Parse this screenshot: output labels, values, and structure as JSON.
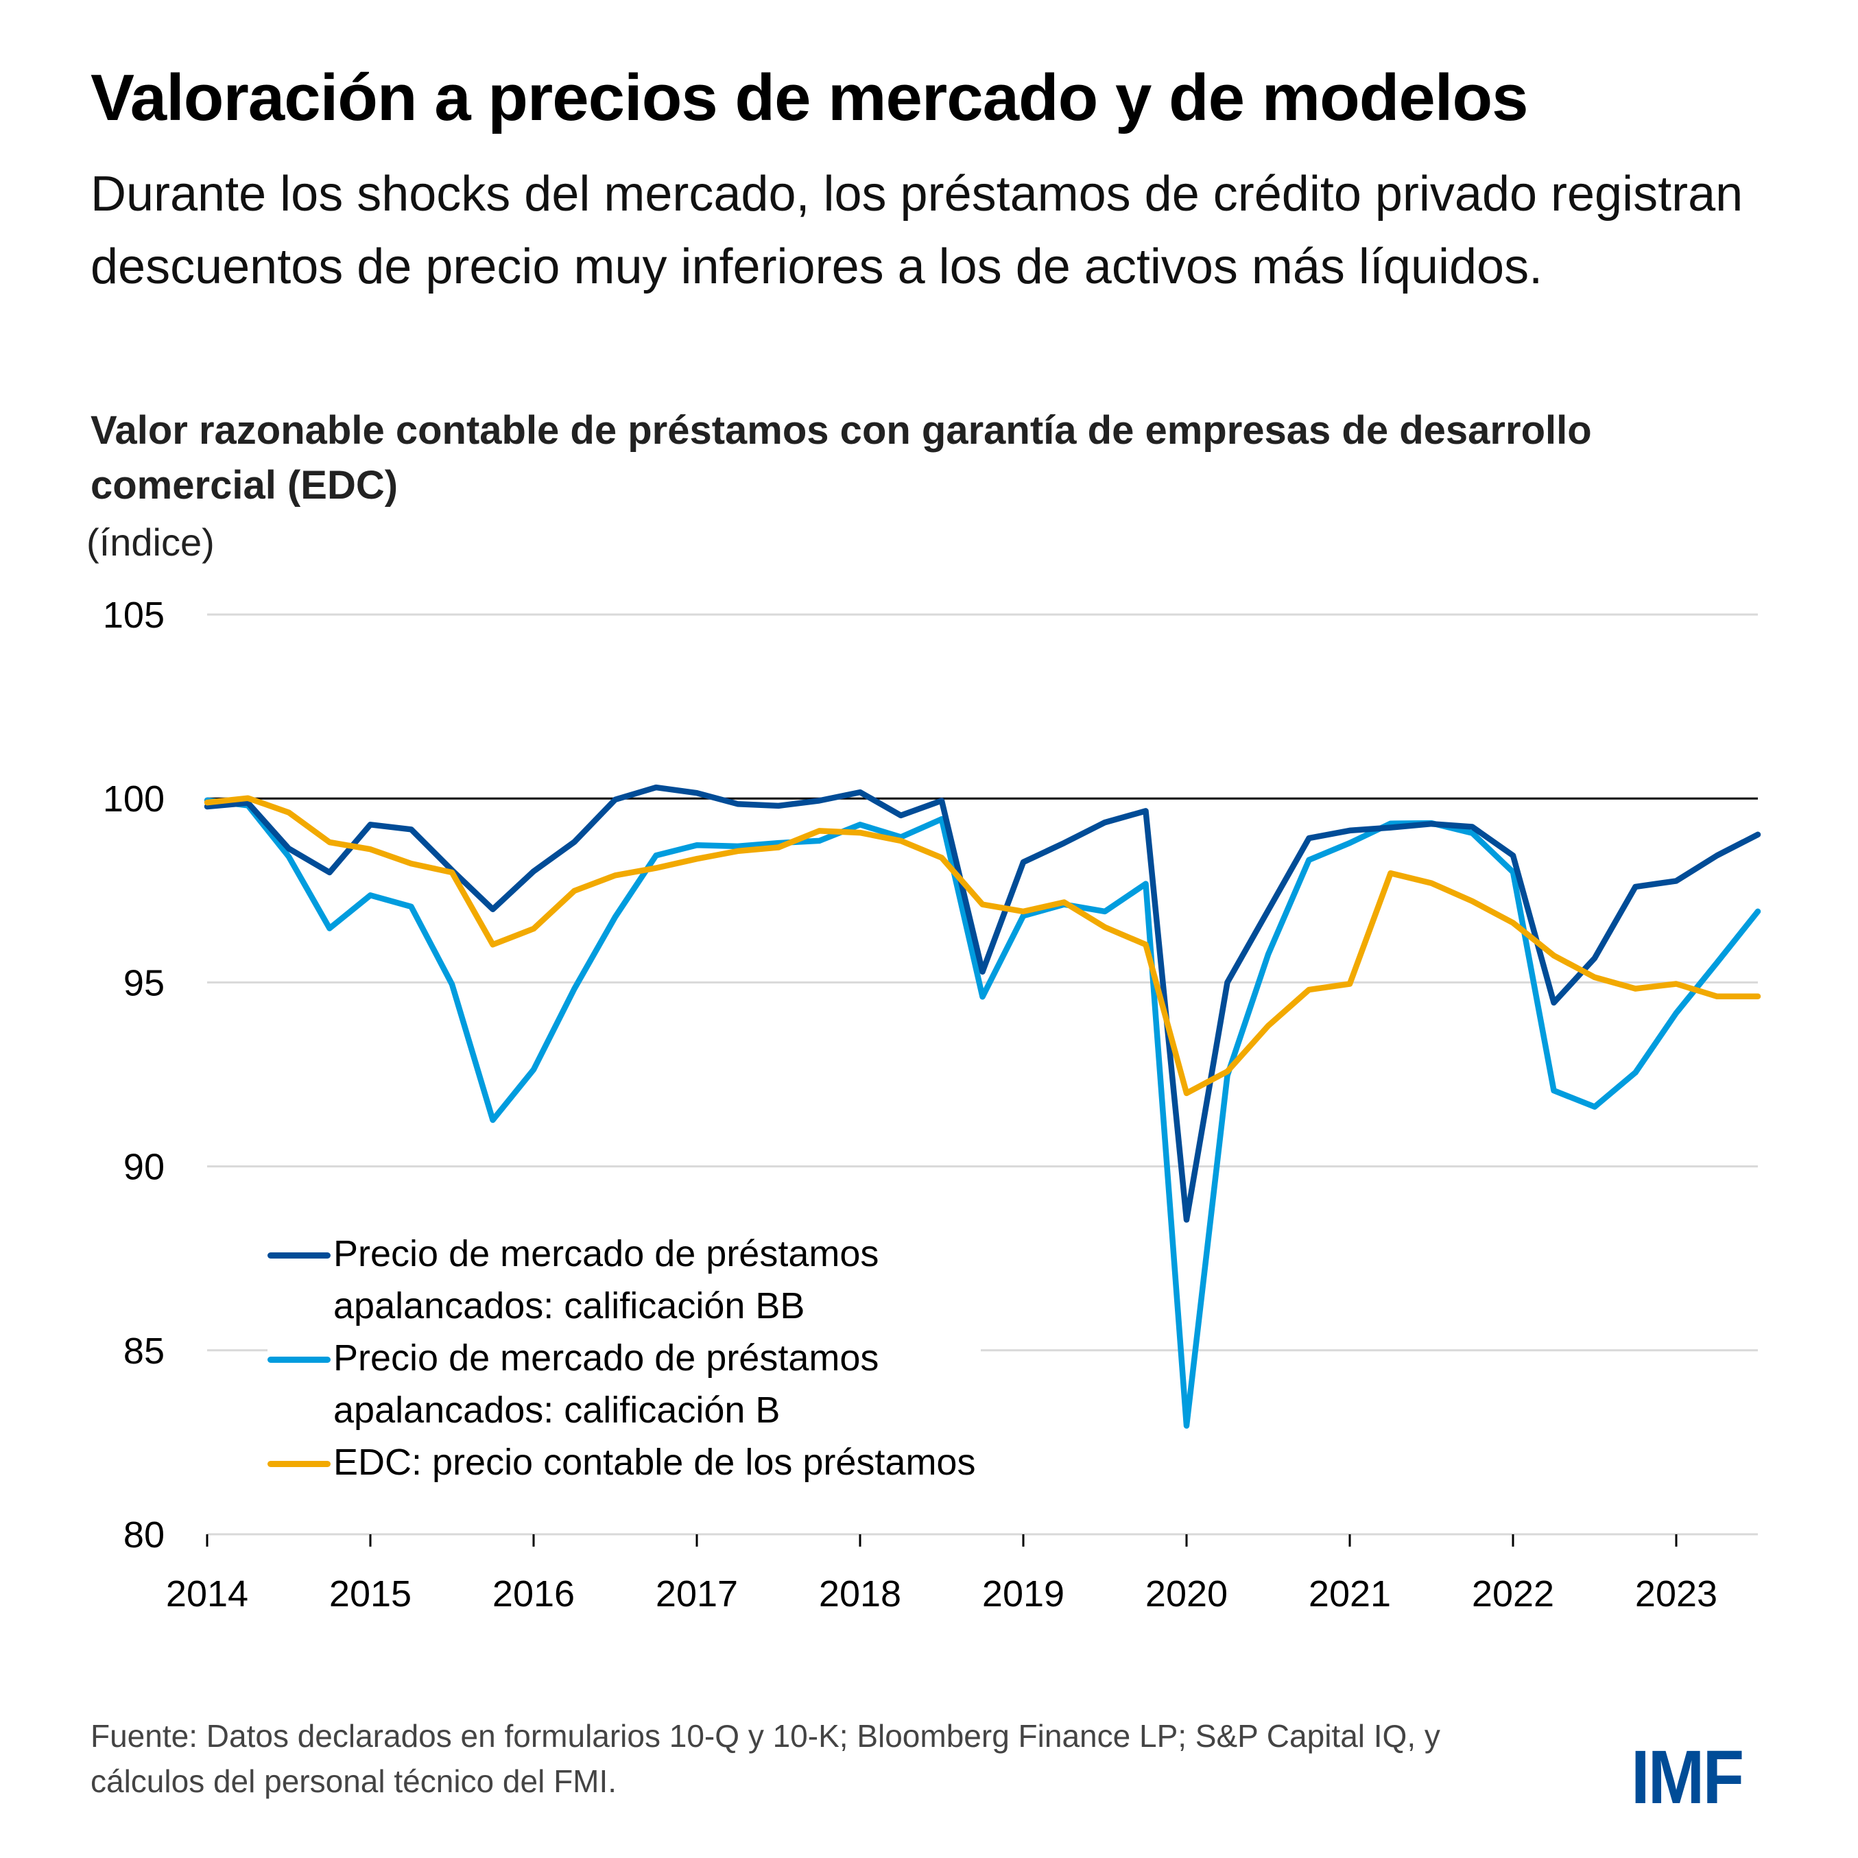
{
  "header": {
    "title": "Valoración a precios de mercado y de modelos",
    "subtitle": "Durante los shocks del mercado, los préstamos de crédito privado registran descuentos de precio muy inferiores a los de activos más líquidos."
  },
  "chart_data": {
    "type": "line",
    "title": "Valor razonable contable de préstamos con garantía de empresas de desarrollo comercial (EDC)",
    "ylabel": "(índice)",
    "xlabel": "",
    "ylim": [
      80,
      105
    ],
    "yticks": [
      105,
      100,
      95,
      90,
      85,
      80
    ],
    "xlim": [
      2014.0,
      2023.5
    ],
    "xticks": [
      2014,
      2015,
      2016,
      2017,
      2018,
      2019,
      2020,
      2021,
      2022,
      2023
    ],
    "xtick_labels": [
      "2014",
      "2015",
      "2016",
      "2017",
      "2018",
      "2019",
      "2020",
      "2021",
      "2022",
      "2023"
    ],
    "reference_line": 100,
    "grid": "horizontal",
    "legend_position": "bottom-left",
    "x": [
      2014.0,
      2014.25,
      2014.5,
      2014.75,
      2015.0,
      2015.25,
      2015.5,
      2015.75,
      2016.0,
      2016.25,
      2016.5,
      2016.75,
      2017.0,
      2017.25,
      2017.5,
      2017.75,
      2018.0,
      2018.25,
      2018.5,
      2018.75,
      2019.0,
      2019.25,
      2019.5,
      2019.75,
      2020.0,
      2020.25,
      2020.5,
      2020.75,
      2021.0,
      2021.25,
      2021.5,
      2021.75,
      2022.0,
      2022.25,
      2022.5,
      2022.75,
      2023.0,
      2023.25,
      2023.5
    ],
    "series": [
      {
        "name": "Precio de mercado de préstamos apalancados: calificación BB",
        "legend_label": "Precio de mercado de préstamos\napalancados: calificación BB",
        "color": "#004C97",
        "values": [
          99.78,
          99.88,
          98.64,
          97.99,
          99.29,
          99.16,
          98.05,
          96.99,
          98.02,
          98.82,
          99.97,
          100.3,
          100.15,
          99.85,
          99.8,
          99.94,
          100.17,
          99.54,
          99.94,
          95.29,
          98.27,
          98.79,
          99.35,
          99.66,
          88.55,
          95.0,
          96.96,
          98.92,
          99.13,
          99.21,
          99.31,
          99.23,
          98.45,
          94.45,
          95.66,
          97.6,
          97.76,
          98.45,
          99.02
        ]
      },
      {
        "name": "Precio de mercado de préstamos apalancados: calificación B",
        "legend_label": "Precio de mercado de préstamos\napalancados: calificación B",
        "color": "#009CDE",
        "values": [
          99.95,
          99.81,
          98.42,
          96.47,
          97.37,
          97.06,
          94.95,
          91.26,
          92.63,
          94.83,
          96.78,
          98.45,
          98.73,
          98.7,
          98.79,
          98.85,
          99.29,
          98.95,
          99.44,
          94.61,
          96.81,
          97.12,
          96.93,
          97.68,
          82.95,
          92.47,
          95.76,
          98.33,
          98.79,
          99.32,
          99.33,
          99.06,
          98.0,
          92.06,
          91.62,
          92.55,
          94.17,
          95.54,
          96.93
        ]
      },
      {
        "name": "EDC: precio contable de los préstamos",
        "legend_label": "EDC: precio contable de los préstamos",
        "color": "#F2A900",
        "values": [
          99.89,
          100.01,
          99.62,
          98.81,
          98.62,
          98.23,
          97.99,
          96.03,
          96.46,
          97.49,
          97.91,
          98.11,
          98.36,
          98.57,
          98.67,
          99.12,
          99.07,
          98.85,
          98.39,
          97.12,
          96.93,
          97.18,
          96.5,
          96.03,
          91.99,
          92.58,
          93.82,
          94.8,
          94.96,
          97.97,
          97.7,
          97.21,
          96.62,
          95.73,
          95.14,
          94.83,
          94.96,
          94.62,
          94.62
        ]
      }
    ]
  },
  "footer": {
    "source": "Fuente: Datos declarados en formularios 10-Q y 10-K; Bloomberg Finance LP; S&P Capital IQ, y cálculos del personal técnico del FMI.",
    "logo": "IMF"
  },
  "colors": {
    "series_bb": "#004C97",
    "series_b": "#009CDE",
    "series_edc": "#F2A900",
    "gridline": "#D9D9D9",
    "logo": "#004C97"
  }
}
